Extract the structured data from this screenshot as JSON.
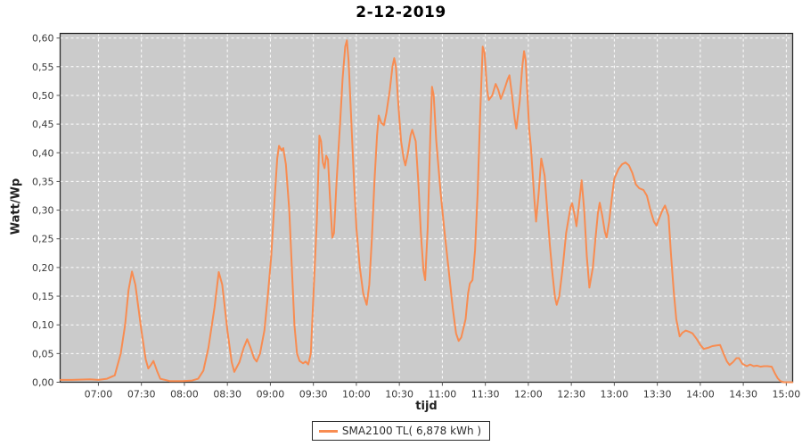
{
  "window": {
    "title": "2-12-2019"
  },
  "colors": {
    "background": "#ffffff",
    "plot_background": "#cbcbcb",
    "gridline": "#ffffff",
    "series_line": "#f88c51",
    "plot_border": "#2b2b2b",
    "tick_label": "#3a3a3a",
    "axis_label": "#222222",
    "legend_border": "#2b2b2b",
    "legend_background": "#ffffff"
  },
  "chart_data": {
    "type": "line",
    "title": "2-12-2019",
    "xlabel": "tijd",
    "ylabel": "Watt/Wp",
    "grid": "on-white-dashed",
    "legend_position": "bottom-center",
    "x_axis": {
      "range_hours": [
        6.555,
        15.074
      ],
      "tick_hours": [
        7,
        7.5,
        8,
        8.5,
        9,
        9.5,
        10,
        10.5,
        11,
        11.5,
        12,
        12.5,
        13,
        13.5,
        14,
        14.5,
        15
      ],
      "tick_labels": [
        "07:00",
        "07:30",
        "08:00",
        "08:30",
        "09:00",
        "09:30",
        "10:00",
        "10:30",
        "11:00",
        "11:30",
        "12:00",
        "12:30",
        "13:00",
        "13:30",
        "14:00",
        "14:30",
        "15:00"
      ]
    },
    "y_axis": {
      "range": [
        0,
        0.608
      ],
      "tick_values": [
        0,
        0.05,
        0.1,
        0.15,
        0.2,
        0.25,
        0.3,
        0.35,
        0.4,
        0.45,
        0.5,
        0.55,
        0.6
      ],
      "tick_labels": [
        "0,00",
        "0,05",
        "0,10",
        "0,15",
        "0,20",
        "0,25",
        "0,30",
        "0,35",
        "0,40",
        "0,45",
        "0,50",
        "0,55",
        "0,60"
      ]
    },
    "legend": [
      {
        "label": "SMA2100 TL( 6,878 kWh )",
        "color": "#f88c51"
      }
    ],
    "series": [
      {
        "name": "SMA2100 TL( 6,878 kWh )",
        "color": "#f88c51",
        "points_time_value": [
          [
            6.56,
            0.004
          ],
          [
            6.69,
            0.004
          ],
          [
            6.9,
            0.005
          ],
          [
            7.0,
            0.004
          ],
          [
            7.1,
            0.006
          ],
          [
            7.19,
            0.012
          ],
          [
            7.26,
            0.05
          ],
          [
            7.31,
            0.1
          ],
          [
            7.35,
            0.16
          ],
          [
            7.39,
            0.193
          ],
          [
            7.43,
            0.17
          ],
          [
            7.5,
            0.09
          ],
          [
            7.55,
            0.04
          ],
          [
            7.58,
            0.024
          ],
          [
            7.61,
            0.03
          ],
          [
            7.64,
            0.037
          ],
          [
            7.68,
            0.02
          ],
          [
            7.72,
            0.006
          ],
          [
            7.83,
            0.002
          ],
          [
            7.98,
            0.002
          ],
          [
            8.09,
            0.003
          ],
          [
            8.16,
            0.006
          ],
          [
            8.22,
            0.02
          ],
          [
            8.28,
            0.06
          ],
          [
            8.35,
            0.13
          ],
          [
            8.4,
            0.192
          ],
          [
            8.44,
            0.17
          ],
          [
            8.5,
            0.09
          ],
          [
            8.55,
            0.035
          ],
          [
            8.58,
            0.018
          ],
          [
            8.64,
            0.035
          ],
          [
            8.69,
            0.06
          ],
          [
            8.73,
            0.075
          ],
          [
            8.77,
            0.06
          ],
          [
            8.81,
            0.042
          ],
          [
            8.84,
            0.036
          ],
          [
            8.88,
            0.05
          ],
          [
            8.93,
            0.09
          ],
          [
            8.97,
            0.15
          ],
          [
            9.01,
            0.22
          ],
          [
            9.05,
            0.32
          ],
          [
            9.08,
            0.39
          ],
          [
            9.1,
            0.412
          ],
          [
            9.13,
            0.404
          ],
          [
            9.15,
            0.408
          ],
          [
            9.18,
            0.38
          ],
          [
            9.22,
            0.3
          ],
          [
            9.25,
            0.2
          ],
          [
            9.28,
            0.1
          ],
          [
            9.31,
            0.05
          ],
          [
            9.34,
            0.037
          ],
          [
            9.38,
            0.033
          ],
          [
            9.41,
            0.036
          ],
          [
            9.44,
            0.031
          ],
          [
            9.47,
            0.05
          ],
          [
            9.5,
            0.15
          ],
          [
            9.54,
            0.28
          ],
          [
            9.56,
            0.38
          ],
          [
            9.57,
            0.43
          ],
          [
            9.59,
            0.42
          ],
          [
            9.61,
            0.383
          ],
          [
            9.63,
            0.373
          ],
          [
            9.65,
            0.395
          ],
          [
            9.67,
            0.388
          ],
          [
            9.69,
            0.33
          ],
          [
            9.72,
            0.252
          ],
          [
            9.74,
            0.26
          ],
          [
            9.77,
            0.35
          ],
          [
            9.81,
            0.45
          ],
          [
            9.84,
            0.53
          ],
          [
            9.87,
            0.585
          ],
          [
            9.89,
            0.596
          ],
          [
            9.91,
            0.56
          ],
          [
            9.94,
            0.46
          ],
          [
            9.97,
            0.36
          ],
          [
            10.0,
            0.27
          ],
          [
            10.04,
            0.2
          ],
          [
            10.08,
            0.155
          ],
          [
            10.12,
            0.135
          ],
          [
            10.15,
            0.17
          ],
          [
            10.18,
            0.25
          ],
          [
            10.21,
            0.35
          ],
          [
            10.24,
            0.43
          ],
          [
            10.26,
            0.465
          ],
          [
            10.29,
            0.452
          ],
          [
            10.32,
            0.448
          ],
          [
            10.35,
            0.47
          ],
          [
            10.39,
            0.51
          ],
          [
            10.42,
            0.55
          ],
          [
            10.44,
            0.565
          ],
          [
            10.46,
            0.55
          ],
          [
            10.49,
            0.48
          ],
          [
            10.52,
            0.42
          ],
          [
            10.55,
            0.39
          ],
          [
            10.57,
            0.378
          ],
          [
            10.6,
            0.4
          ],
          [
            10.63,
            0.43
          ],
          [
            10.65,
            0.44
          ],
          [
            10.69,
            0.42
          ],
          [
            10.72,
            0.35
          ],
          [
            10.75,
            0.26
          ],
          [
            10.78,
            0.195
          ],
          [
            10.8,
            0.178
          ],
          [
            10.83,
            0.27
          ],
          [
            10.86,
            0.43
          ],
          [
            10.88,
            0.515
          ],
          [
            10.9,
            0.5
          ],
          [
            10.93,
            0.42
          ],
          [
            10.98,
            0.33
          ],
          [
            11.02,
            0.27
          ],
          [
            11.07,
            0.2
          ],
          [
            11.12,
            0.13
          ],
          [
            11.16,
            0.085
          ],
          [
            11.19,
            0.072
          ],
          [
            11.22,
            0.078
          ],
          [
            11.27,
            0.11
          ],
          [
            11.3,
            0.155
          ],
          [
            11.32,
            0.172
          ],
          [
            11.35,
            0.178
          ],
          [
            11.38,
            0.23
          ],
          [
            11.41,
            0.33
          ],
          [
            11.44,
            0.47
          ],
          [
            11.47,
            0.585
          ],
          [
            11.49,
            0.575
          ],
          [
            11.52,
            0.51
          ],
          [
            11.54,
            0.492
          ],
          [
            11.58,
            0.5
          ],
          [
            11.62,
            0.52
          ],
          [
            11.65,
            0.51
          ],
          [
            11.68,
            0.494
          ],
          [
            11.72,
            0.51
          ],
          [
            11.76,
            0.528
          ],
          [
            11.78,
            0.535
          ],
          [
            11.81,
            0.5
          ],
          [
            11.84,
            0.46
          ],
          [
            11.86,
            0.442
          ],
          [
            11.9,
            0.49
          ],
          [
            11.93,
            0.55
          ],
          [
            11.95,
            0.577
          ],
          [
            11.97,
            0.56
          ],
          [
            11.99,
            0.5
          ],
          [
            12.01,
            0.44
          ],
          [
            12.03,
            0.41
          ],
          [
            12.07,
            0.32
          ],
          [
            12.09,
            0.28
          ],
          [
            12.12,
            0.33
          ],
          [
            12.15,
            0.39
          ],
          [
            12.19,
            0.36
          ],
          [
            12.22,
            0.3
          ],
          [
            12.25,
            0.24
          ],
          [
            12.28,
            0.19
          ],
          [
            12.31,
            0.148
          ],
          [
            12.33,
            0.135
          ],
          [
            12.36,
            0.15
          ],
          [
            12.4,
            0.2
          ],
          [
            12.44,
            0.26
          ],
          [
            12.49,
            0.305
          ],
          [
            12.51,
            0.312
          ],
          [
            12.54,
            0.29
          ],
          [
            12.56,
            0.272
          ],
          [
            12.59,
            0.31
          ],
          [
            12.62,
            0.352
          ],
          [
            12.65,
            0.3
          ],
          [
            12.68,
            0.22
          ],
          [
            12.71,
            0.165
          ],
          [
            12.75,
            0.2
          ],
          [
            12.78,
            0.25
          ],
          [
            12.81,
            0.295
          ],
          [
            12.83,
            0.313
          ],
          [
            12.86,
            0.29
          ],
          [
            12.89,
            0.262
          ],
          [
            12.91,
            0.252
          ],
          [
            12.94,
            0.28
          ],
          [
            12.97,
            0.32
          ],
          [
            13.0,
            0.355
          ],
          [
            13.05,
            0.372
          ],
          [
            13.09,
            0.38
          ],
          [
            13.13,
            0.383
          ],
          [
            13.17,
            0.378
          ],
          [
            13.21,
            0.365
          ],
          [
            13.25,
            0.345
          ],
          [
            13.29,
            0.338
          ],
          [
            13.34,
            0.335
          ],
          [
            13.38,
            0.325
          ],
          [
            13.42,
            0.3
          ],
          [
            13.46,
            0.28
          ],
          [
            13.49,
            0.273
          ],
          [
            13.52,
            0.285
          ],
          [
            13.56,
            0.3
          ],
          [
            13.59,
            0.308
          ],
          [
            13.63,
            0.29
          ],
          [
            13.66,
            0.22
          ],
          [
            13.69,
            0.16
          ],
          [
            13.72,
            0.11
          ],
          [
            13.76,
            0.08
          ],
          [
            13.79,
            0.086
          ],
          [
            13.83,
            0.09
          ],
          [
            13.87,
            0.088
          ],
          [
            13.91,
            0.085
          ],
          [
            13.96,
            0.075
          ],
          [
            14.0,
            0.065
          ],
          [
            14.04,
            0.058
          ],
          [
            14.09,
            0.06
          ],
          [
            14.14,
            0.063
          ],
          [
            14.19,
            0.064
          ],
          [
            14.23,
            0.065
          ],
          [
            14.27,
            0.05
          ],
          [
            14.31,
            0.036
          ],
          [
            14.34,
            0.03
          ],
          [
            14.38,
            0.035
          ],
          [
            14.42,
            0.042
          ],
          [
            14.45,
            0.042
          ],
          [
            14.49,
            0.032
          ],
          [
            14.54,
            0.028
          ],
          [
            14.58,
            0.031
          ],
          [
            14.62,
            0.028
          ],
          [
            14.66,
            0.029
          ],
          [
            14.7,
            0.027
          ],
          [
            14.74,
            0.028
          ],
          [
            14.78,
            0.028
          ],
          [
            14.83,
            0.027
          ],
          [
            14.87,
            0.015
          ],
          [
            14.9,
            0.007
          ],
          [
            14.93,
            0.002
          ],
          [
            14.97,
            0.0
          ],
          [
            15.02,
            0.0
          ],
          [
            15.07,
            0.0
          ]
        ]
      }
    ]
  }
}
